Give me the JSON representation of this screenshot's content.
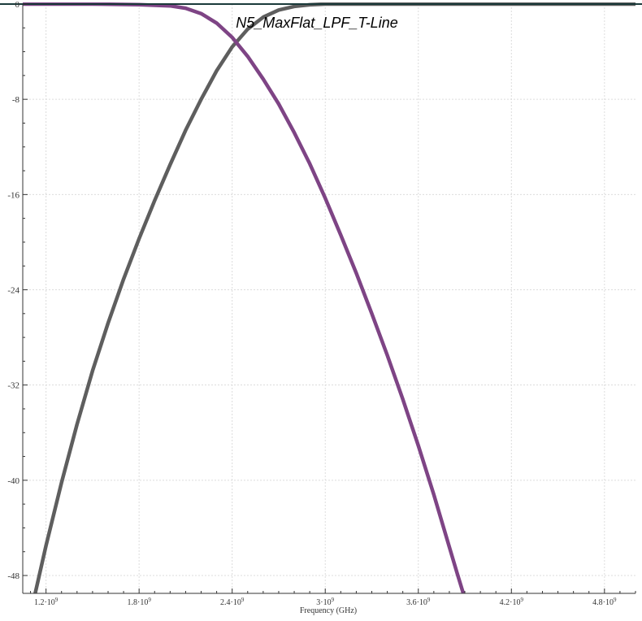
{
  "chart_data": {
    "type": "line",
    "title": "N5_MaxFlat_LPF_T-Line",
    "xlabel": "Frequency (GHz)",
    "ylabel": "",
    "xlim": [
      1050000000.0,
      5000000000.0
    ],
    "ylim": [
      -49.5,
      0
    ],
    "x_ticks": [
      {
        "value": 1200000000.0,
        "mant": "1.2",
        "exp": "9"
      },
      {
        "value": 1800000000.0,
        "mant": "1.8",
        "exp": "9"
      },
      {
        "value": 2400000000.0,
        "mant": "2.4",
        "exp": "9"
      },
      {
        "value": 3000000000.0,
        "mant": "3",
        "exp": "9"
      },
      {
        "value": 3600000000.0,
        "mant": "3.6",
        "exp": "9"
      },
      {
        "value": 4200000000.0,
        "mant": "4.2",
        "exp": "9"
      },
      {
        "value": 4800000000.0,
        "mant": "4.8",
        "exp": "9"
      }
    ],
    "y_ticks": [
      {
        "value": 0,
        "label": "0"
      },
      {
        "value": -8,
        "label": "-8"
      },
      {
        "value": -16,
        "label": "-16"
      },
      {
        "value": -24,
        "label": "-24"
      },
      {
        "value": -32,
        "label": "-32"
      },
      {
        "value": -40,
        "label": "-40"
      },
      {
        "value": -48,
        "label": "-48"
      }
    ],
    "grid": true,
    "series": [
      {
        "color": "#5e5e5e",
        "x": [
          1130000000.0,
          1200000000.0,
          1300000000.0,
          1400000000.0,
          1500000000.0,
          1600000000.0,
          1700000000.0,
          1800000000.0,
          1900000000.0,
          2000000000.0,
          2100000000.0,
          2200000000.0,
          2300000000.0,
          2400000000.0,
          2500000000.0,
          2600000000.0,
          2700000000.0,
          2800000000.0,
          2900000000.0,
          3000000000.0,
          3200000000.0,
          3400000000.0,
          3600000000.0,
          3800000000.0,
          4000000000.0,
          4200000000.0,
          4400000000.0,
          4600000000.0,
          4800000000.0,
          5000000000.0
        ],
        "y": [
          -49.5,
          -45.5,
          -40.2,
          -35.3,
          -30.8,
          -26.8,
          -23.1,
          -19.7,
          -16.5,
          -13.5,
          -10.6,
          -8.0,
          -5.6,
          -3.6,
          -2.1,
          -1.1,
          -0.5,
          -0.2,
          -0.06,
          0,
          0,
          0,
          0,
          0,
          0,
          0,
          0,
          0,
          0,
          0
        ]
      },
      {
        "color": "#7e4485",
        "x": [
          1050000000.0,
          1500000000.0,
          1800000000.0,
          2000000000.0,
          2100000000.0,
          2200000000.0,
          2300000000.0,
          2400000000.0,
          2500000000.0,
          2600000000.0,
          2700000000.0,
          2800000000.0,
          2900000000.0,
          3000000000.0,
          3100000000.0,
          3200000000.0,
          3300000000.0,
          3400000000.0,
          3500000000.0,
          3600000000.0,
          3700000000.0,
          3800000000.0,
          3850000000.0,
          3890000000.0
        ],
        "y": [
          0,
          0,
          -0.05,
          -0.15,
          -0.35,
          -0.8,
          -1.6,
          -2.8,
          -4.4,
          -6.3,
          -8.4,
          -10.8,
          -13.4,
          -16.3,
          -19.4,
          -22.6,
          -26.0,
          -29.5,
          -33.2,
          -37.1,
          -41.2,
          -45.6,
          -47.8,
          -49.5
        ]
      }
    ]
  }
}
